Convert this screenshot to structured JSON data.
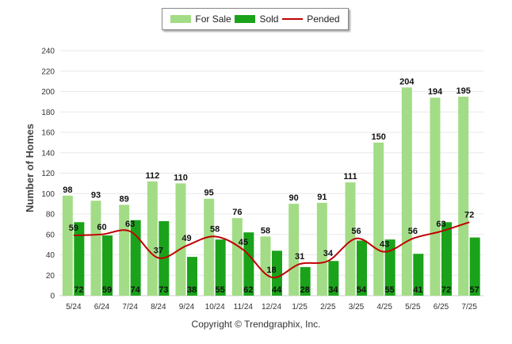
{
  "legend": {
    "for_sale": "For Sale",
    "sold": "Sold",
    "pended": "Pended"
  },
  "footer": {
    "copyright": "Copyright © Trendgraphix, Inc."
  },
  "colors": {
    "for_sale": "#a3dc86",
    "sold": "#1aa31a",
    "pended": "#c00000",
    "grid": "#e8e8e8"
  },
  "chart_data": {
    "type": "bar",
    "ylabel": "Number of Homes",
    "xlabel": "",
    "ylim": [
      0,
      240
    ],
    "yticks": [
      0,
      20,
      40,
      60,
      80,
      100,
      120,
      140,
      160,
      180,
      200,
      220,
      240
    ],
    "grid": true,
    "legend_position": "top-center",
    "categories": [
      "5/24",
      "6/24",
      "7/24",
      "8/24",
      "9/24",
      "10/24",
      "11/24",
      "12/24",
      "1/25",
      "2/25",
      "3/25",
      "4/25",
      "5/25",
      "6/25",
      "7/25"
    ],
    "series": [
      {
        "name": "For Sale",
        "type": "bar",
        "values": [
          98,
          93,
          89,
          112,
          110,
          95,
          76,
          58,
          90,
          91,
          111,
          150,
          204,
          194,
          195
        ]
      },
      {
        "name": "Sold",
        "type": "bar",
        "values": [
          72,
          59,
          74,
          73,
          38,
          55,
          62,
          44,
          28,
          34,
          54,
          55,
          41,
          72,
          57
        ]
      },
      {
        "name": "Pended",
        "type": "line",
        "values": [
          59,
          60,
          63,
          37,
          49,
          58,
          45,
          18,
          31,
          34,
          56,
          43,
          56,
          63,
          72
        ]
      }
    ]
  }
}
